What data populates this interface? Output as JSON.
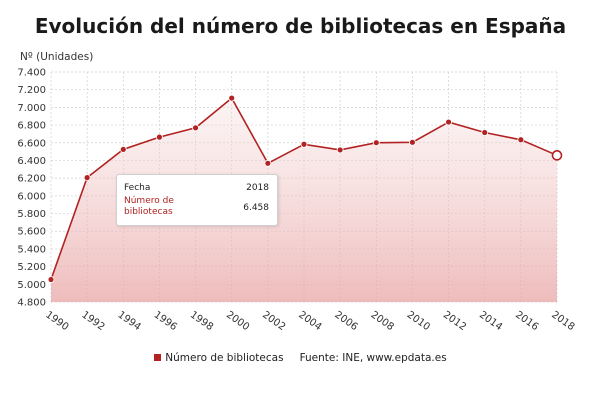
{
  "chart_data": {
    "type": "area",
    "title": "Evolución del número de bibliotecas en España",
    "ylabel": "Nº (Unidades)",
    "xlabel": "",
    "x": [
      1990,
      1992,
      1994,
      1996,
      1998,
      2000,
      2002,
      2004,
      2006,
      2008,
      2010,
      2012,
      2014,
      2016,
      2018
    ],
    "x_tick_labels": [
      "1990",
      "1992",
      "1994",
      "1996",
      "1998",
      "2000",
      "2002",
      "2004",
      "2006",
      "2008",
      "2010",
      "2012",
      "2014",
      "2016",
      "2018"
    ],
    "series": [
      {
        "name": "Número de bibliotecas",
        "values": [
          5054,
          6206,
          6525,
          6664,
          6769,
          7105,
          6368,
          6583,
          6519,
          6601,
          6605,
          6834,
          6716,
          6634,
          6458
        ]
      }
    ],
    "ylim": [
      4800,
      7400
    ],
    "y_ticks": [
      4800,
      5000,
      5200,
      5400,
      5600,
      5800,
      6000,
      6200,
      6400,
      6600,
      6800,
      7000,
      7200,
      7400
    ],
    "y_tick_labels": [
      "4.800",
      "5.000",
      "5.200",
      "5.400",
      "5.600",
      "5.800",
      "6.000",
      "6.200",
      "6.400",
      "6.600",
      "6.800",
      "7.000",
      "7.200",
      "7.400"
    ],
    "grid": true,
    "legend_position": "bottom",
    "line_color": "#b22222",
    "fill_color": "#e9a5a5",
    "source": "Fuente: INE, www.epdata.es",
    "tooltip": {
      "date_label": "Fecha",
      "date_value": "2018",
      "series_label": "Número de bibliotecas",
      "series_value": "6.458"
    }
  }
}
